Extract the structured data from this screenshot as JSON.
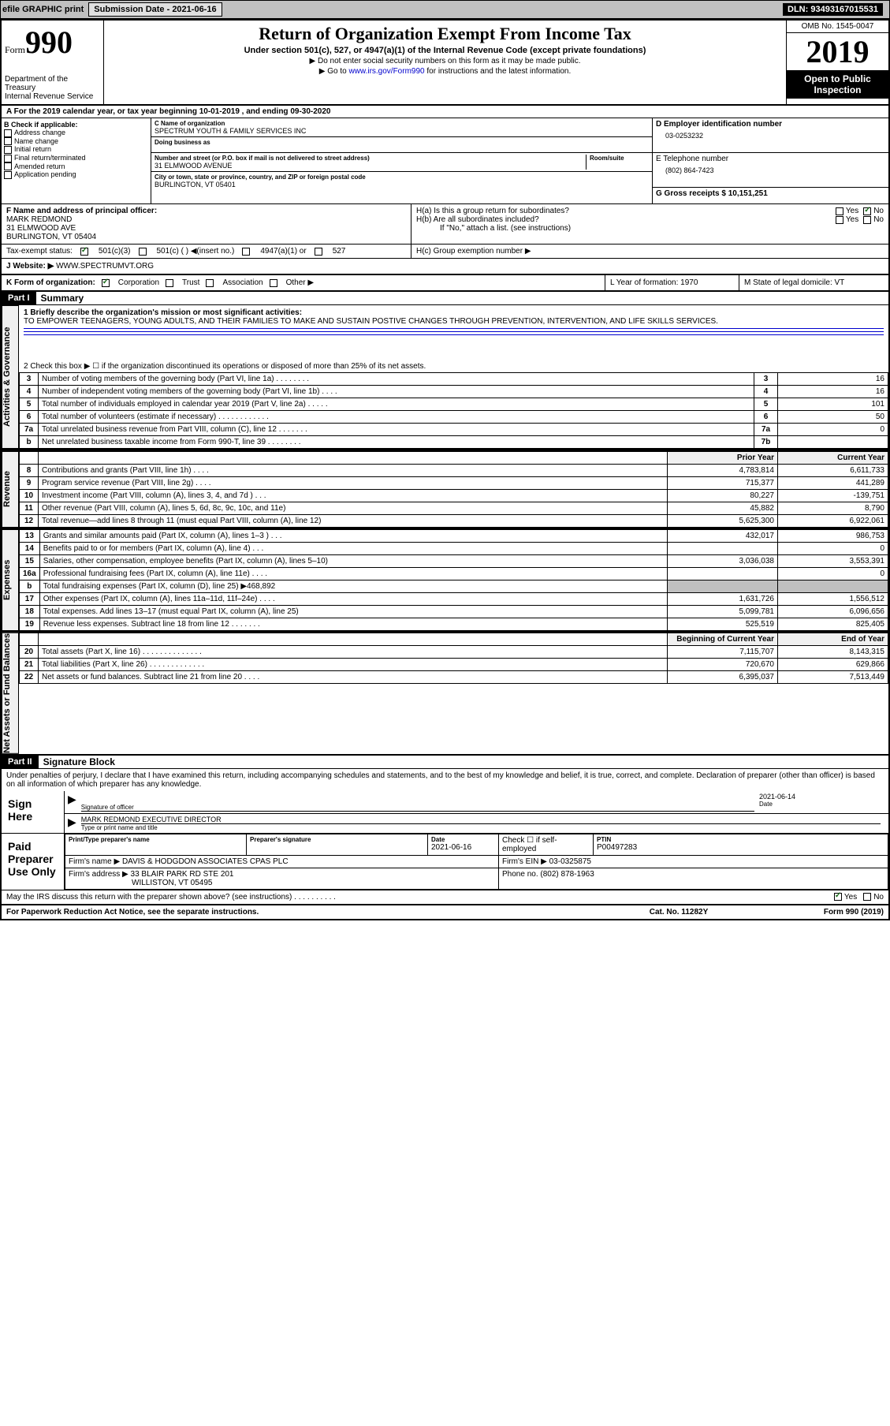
{
  "topbar": {
    "efile": "efile GRAPHIC print",
    "submission_label": "Submission Date - 2021-06-16",
    "dln": "DLN: 93493167015531"
  },
  "header": {
    "form_label_small": "Form",
    "form_label_big": "990",
    "dept": "Department of the Treasury",
    "irs": "Internal Revenue Service",
    "title": "Return of Organization Exempt From Income Tax",
    "subtitle": "Under section 501(c), 527, or 4947(a)(1) of the Internal Revenue Code (except private foundations)",
    "note1": "▶ Do not enter social security numbers on this form as it may be made public.",
    "note2_pre": "▶ Go to ",
    "note2_link": "www.irs.gov/Form990",
    "note2_post": " for instructions and the latest information.",
    "omb": "OMB No. 1545-0047",
    "year": "2019",
    "public_inspection": "Open to Public Inspection"
  },
  "period": {
    "line": "A For the 2019 calendar year, or tax year beginning 10-01-2019   , and ending 09-30-2020"
  },
  "boxB": {
    "title": "B Check if applicable:",
    "items": [
      "Address change",
      "Name change",
      "Initial return",
      "Final return/terminated",
      "Amended return",
      "Application pending"
    ]
  },
  "boxC": {
    "name_label": "C Name of organization",
    "name": "SPECTRUM YOUTH & FAMILY SERVICES INC",
    "dba_label": "Doing business as",
    "addr_label": "Number and street (or P.O. box if mail is not delivered to street address)",
    "room_label": "Room/suite",
    "addr": "31 ELMWOOD AVENUE",
    "city_label": "City or town, state or province, country, and ZIP or foreign postal code",
    "city": "BURLINGTON, VT  05401"
  },
  "boxD": {
    "label": "D Employer identification number",
    "value": "03-0253232"
  },
  "boxE": {
    "label": "E Telephone number",
    "value": "(802) 864-7423"
  },
  "boxG": {
    "label": "G Gross receipts $ 10,151,251"
  },
  "boxF": {
    "label": "F Name and address of principal officer:",
    "name": "MARK REDMOND",
    "addr1": "31 ELMWOOD AVE",
    "addr2": "BURLINGTON, VT  05404"
  },
  "boxH": {
    "ha": "H(a) Is this a group return for subordinates?",
    "hb": "H(b) Are all subordinates included?",
    "hb_note": "If \"No,\" attach a list. (see instructions)",
    "hc": "H(c) Group exemption number ▶",
    "yes": "Yes",
    "no": "No"
  },
  "taxexempt": {
    "label": "Tax-exempt status:",
    "c3": "501(c)(3)",
    "c": "501(c) (  ) ◀(insert no.)",
    "a1": "4947(a)(1) or",
    "527": "527"
  },
  "boxJ": {
    "label": "J    Website: ▶",
    "value": "WWW.SPECTRUMVT.ORG"
  },
  "boxK": {
    "label": "K Form of organization:",
    "corp": "Corporation",
    "trust": "Trust",
    "assoc": "Association",
    "other": "Other ▶"
  },
  "boxL": {
    "label": "L Year of formation: 1970"
  },
  "boxM": {
    "label": "M State of legal domicile: VT"
  },
  "part1": {
    "tag": "Part I",
    "title": "Summary",
    "line1_label": "1  Briefly describe the organization's mission or most significant activities:",
    "mission": "TO EMPOWER TEENAGERS, YOUNG ADULTS, AND THEIR FAMILIES TO MAKE AND SUSTAIN POSTIVE CHANGES THROUGH PREVENTION, INTERVENTION, AND LIFE SKILLS SERVICES.",
    "line2": "2   Check this box ▶ ☐  if the organization discontinued its operations or disposed of more than 25% of its net assets.",
    "governance_rows": [
      {
        "n": "3",
        "desc": "Number of voting members of the governing body (Part VI, line 1a)  .    .    .    .    .    .    .    .",
        "ref": "3",
        "val": "16"
      },
      {
        "n": "4",
        "desc": "Number of independent voting members of the governing body (Part VI, line 1b)  .    .    .    .",
        "ref": "4",
        "val": "16"
      },
      {
        "n": "5",
        "desc": "Total number of individuals employed in calendar year 2019 (Part V, line 2a)  .    .    .    .    .",
        "ref": "5",
        "val": "101"
      },
      {
        "n": "6",
        "desc": "Total number of volunteers (estimate if necessary)   .    .    .    .    .    .    .    .    .    .    .    .",
        "ref": "6",
        "val": "50"
      },
      {
        "n": "7a",
        "desc": "Total unrelated business revenue from Part VIII, column (C), line 12  .    .    .    .    .    .    .",
        "ref": "7a",
        "val": "0"
      },
      {
        "n": "b",
        "desc": "Net unrelated business taxable income from Form 990-T, line 39   .    .    .    .    .    .    .    .",
        "ref": "7b",
        "val": ""
      }
    ],
    "col_prior": "Prior Year",
    "col_current": "Current Year",
    "revenue_rows": [
      {
        "n": "8",
        "desc": "Contributions and grants (Part VIII, line 1h)   .    .    .    .",
        "py": "4,783,814",
        "cy": "6,611,733"
      },
      {
        "n": "9",
        "desc": "Program service revenue (Part VIII, line 2g)   .    .    .    .",
        "py": "715,377",
        "cy": "441,289"
      },
      {
        "n": "10",
        "desc": "Investment income (Part VIII, column (A), lines 3, 4, and 7d )   .    .    .",
        "py": "80,227",
        "cy": "-139,751"
      },
      {
        "n": "11",
        "desc": "Other revenue (Part VIII, column (A), lines 5, 6d, 8c, 9c, 10c, and 11e)",
        "py": "45,882",
        "cy": "8,790"
      },
      {
        "n": "12",
        "desc": "Total revenue—add lines 8 through 11 (must equal Part VIII, column (A), line 12)",
        "py": "5,625,300",
        "cy": "6,922,061"
      }
    ],
    "expense_rows": [
      {
        "n": "13",
        "desc": "Grants and similar amounts paid (Part IX, column (A), lines 1–3 )  .    .    .",
        "py": "432,017",
        "cy": "986,753"
      },
      {
        "n": "14",
        "desc": "Benefits paid to or for members (Part IX, column (A), line 4)  .    .    .",
        "py": "",
        "cy": "0"
      },
      {
        "n": "15",
        "desc": "Salaries, other compensation, employee benefits (Part IX, column (A), lines 5–10)",
        "py": "3,036,038",
        "cy": "3,553,391"
      },
      {
        "n": "16a",
        "desc": "Professional fundraising fees (Part IX, column (A), line 11e)  .    .    .    .",
        "py": "",
        "cy": "0"
      },
      {
        "n": "b",
        "desc": "Total fundraising expenses (Part IX, column (D), line 25) ▶468,892",
        "py": "shade",
        "cy": "shade"
      },
      {
        "n": "17",
        "desc": "Other expenses (Part IX, column (A), lines 11a–11d, 11f–24e)  .    .    .    .",
        "py": "1,631,726",
        "cy": "1,556,512"
      },
      {
        "n": "18",
        "desc": "Total expenses. Add lines 13–17 (must equal Part IX, column (A), line 25)",
        "py": "5,099,781",
        "cy": "6,096,656"
      },
      {
        "n": "19",
        "desc": "Revenue less expenses. Subtract line 18 from line 12  .    .    .    .    .    .    .",
        "py": "525,519",
        "cy": "825,405"
      }
    ],
    "col_boy": "Beginning of Current Year",
    "col_eoy": "End of Year",
    "netassets_rows": [
      {
        "n": "20",
        "desc": "Total assets (Part X, line 16)  .    .    .    .    .    .    .    .    .    .    .    .    .    .",
        "py": "7,115,707",
        "cy": "8,143,315"
      },
      {
        "n": "21",
        "desc": "Total liabilities (Part X, line 26)  .    .    .    .    .    .    .    .    .    .    .    .    .",
        "py": "720,670",
        "cy": "629,866"
      },
      {
        "n": "22",
        "desc": "Net assets or fund balances. Subtract line 21 from line 20  .    .    .    .",
        "py": "6,395,037",
        "cy": "7,513,449"
      }
    ],
    "vlabels": {
      "gov": "Activities & Governance",
      "rev": "Revenue",
      "exp": "Expenses",
      "net": "Net Assets or Fund Balances"
    }
  },
  "part2": {
    "tag": "Part II",
    "title": "Signature Block",
    "decl": "Under penalties of perjury, I declare that I have examined this return, including accompanying schedules and statements, and to the best of my knowledge and belief, it is true, correct, and complete. Declaration of preparer (other than officer) is based on all information of which preparer has any knowledge.",
    "sign_here": "Sign Here",
    "sig_officer": "Signature of officer",
    "sig_date": "2021-06-14",
    "date_label": "Date",
    "officer_name": "MARK REDMOND  EXECUTIVE DIRECTOR",
    "officer_type_label": "Type or print name and title",
    "paid": "Paid Preparer Use Only",
    "prep_name_label": "Print/Type preparer's name",
    "prep_sig_label": "Preparer's signature",
    "prep_date": "2021-06-16",
    "self_emp": "Check ☐ if self-employed",
    "ptin_label": "PTIN",
    "ptin": "P00497283",
    "firm_name_label": "Firm's name    ▶",
    "firm_name": "DAVIS & HODGDON ASSOCIATES CPAS PLC",
    "firm_ein_label": "Firm's EIN ▶",
    "firm_ein": "03-0325875",
    "firm_addr_label": "Firm's address ▶",
    "firm_addr1": "33 BLAIR PARK RD STE 201",
    "firm_addr2": "WILLISTON, VT  05495",
    "phone_label": "Phone no.",
    "phone": "(802) 878-1963",
    "discuss": "May the IRS discuss this return with the preparer shown above? (see instructions)   .    .    .    .    .    .    .    .    .    .",
    "yes": "Yes",
    "no": "No"
  },
  "footer": {
    "left": "For Paperwork Reduction Act Notice, see the separate instructions.",
    "mid": "Cat. No. 11282Y",
    "right": "Form 990 (2019)"
  }
}
